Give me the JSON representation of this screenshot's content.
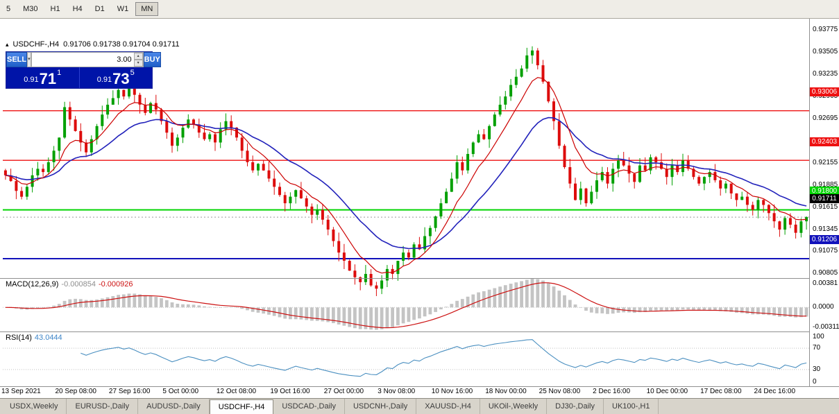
{
  "toolbar": {
    "buttons": [
      "5",
      "M30",
      "H1",
      "H4",
      "D1",
      "W1",
      "MN"
    ],
    "active_index": 6
  },
  "chart_header": {
    "symbol": "USDCHF-,H4",
    "ohlc": "0.91706 0.91738 0.91704 0.91711"
  },
  "icons": {
    "collapse": "▴",
    "dropdown": "▾",
    "spin_up": "▴",
    "spin_down": "▾"
  },
  "trade_panel": {
    "sell_label": "SELL",
    "buy_label": "BUY",
    "volume": "3.00",
    "sell": {
      "prefix": "0.91",
      "big": "71",
      "sup": "1"
    },
    "buy": {
      "prefix": "0.91",
      "big": "73",
      "sup": "5"
    }
  },
  "tabbar": {
    "items": [
      "USDX,Weekly",
      "EURUSD-,Daily",
      "AUDUSD-,Daily",
      "USDCHF-,H4",
      "USDCAD-,Daily",
      "USDCNH-,Daily",
      "XAUUSD-,H4",
      "UKOil-,Weekly",
      "DJ30-,Daily",
      "UK100-,H1"
    ],
    "active_index": 3
  },
  "chart_data": {
    "type": "candlestick",
    "symbol": "USDCHF-",
    "timeframe": "H4",
    "ohlc_header": {
      "open": 0.91706,
      "high": 0.91738,
      "low": 0.91704,
      "close": 0.91711
    },
    "ylim": [
      0.9075,
      0.9389
    ],
    "y_axis_ticks": [
      "0.93775",
      "0.93505",
      "0.93235",
      "0.92965",
      "0.92695",
      "0.92425",
      "0.92155",
      "0.91885",
      "0.91615",
      "0.91345",
      "0.91075",
      "0.90805"
    ],
    "x_labels": [
      "13 Sep 2021",
      "20 Sep 08:00",
      "27 Sep 16:00",
      "5 Oct 00:00",
      "12 Oct 08:00",
      "19 Oct 16:00",
      "27 Oct 00:00",
      "3 Nov 08:00",
      "10 Nov 16:00",
      "18 Nov 00:00",
      "25 Nov 08:00",
      "2 Dec 16:00",
      "10 Dec 00:00",
      "17 Dec 08:00",
      "24 Dec 16:00"
    ],
    "x_label_step": 10,
    "closes": [
      0.9222,
      0.9215,
      0.9203,
      0.9196,
      0.9208,
      0.9222,
      0.923,
      0.9226,
      0.9238,
      0.9252,
      0.9268,
      0.9305,
      0.929,
      0.9276,
      0.9262,
      0.925,
      0.9266,
      0.9282,
      0.9296,
      0.9308,
      0.9316,
      0.9326,
      0.9318,
      0.933,
      0.932,
      0.9308,
      0.9298,
      0.931,
      0.9302,
      0.9288,
      0.9274,
      0.9258,
      0.9268,
      0.928,
      0.929,
      0.9284,
      0.9274,
      0.9266,
      0.9272,
      0.9262,
      0.9278,
      0.9288,
      0.928,
      0.9268,
      0.9252,
      0.9238,
      0.9228,
      0.9236,
      0.9228,
      0.9218,
      0.9208,
      0.9198,
      0.9188,
      0.9196,
      0.9204,
      0.9194,
      0.9184,
      0.9174,
      0.918,
      0.9168,
      0.9156,
      0.9142,
      0.9128,
      0.9118,
      0.9106,
      0.9098,
      0.9092,
      0.9102,
      0.9088,
      0.9084,
      0.9094,
      0.9108,
      0.9102,
      0.9118,
      0.9128,
      0.9122,
      0.9138,
      0.9132,
      0.9148,
      0.9158,
      0.9172,
      0.9188,
      0.9202,
      0.9218,
      0.9238,
      0.9228,
      0.9248,
      0.9262,
      0.9272,
      0.9266,
      0.9282,
      0.9296,
      0.9308,
      0.9318,
      0.9332,
      0.9342,
      0.9352,
      0.9368,
      0.9374,
      0.9356,
      0.9336,
      0.9312,
      0.9288,
      0.9258,
      0.9232,
      0.9212,
      0.9192,
      0.9206,
      0.9188,
      0.9202,
      0.9216,
      0.9226,
      0.9212,
      0.923,
      0.924,
      0.9234,
      0.9224,
      0.9214,
      0.9234,
      0.9228,
      0.9244,
      0.9238,
      0.923,
      0.922,
      0.9234,
      0.9226,
      0.924,
      0.923,
      0.922,
      0.9212,
      0.922,
      0.9226,
      0.9216,
      0.9206,
      0.9212,
      0.92,
      0.9192,
      0.9196,
      0.9186,
      0.918,
      0.9192,
      0.9186,
      0.9176,
      0.9166,
      0.9156,
      0.917,
      0.9162,
      0.9152,
      0.9166,
      0.91711
    ],
    "colors": {
      "up": "#00a000",
      "down": "#dd0c0c",
      "ma_fast": "#cc0000",
      "ma_slow": "#2222bb",
      "macd_hist": "#c4c4c4",
      "macd_signal": "#cc1111",
      "rsi": "#4a8fc0"
    },
    "hlines": [
      {
        "price": 0.93006,
        "label": "0.93006",
        "color": "#ee1111",
        "width": 1.4
      },
      {
        "price": 0.92403,
        "label": "0.92403",
        "color": "#ee1111",
        "width": 1.4
      },
      {
        "price": 0.918,
        "label": "0.91800",
        "color": "#00d400",
        "width": 2
      },
      {
        "price": 0.91206,
        "label": "0.91206",
        "color": "#1111bb",
        "width": 2
      }
    ],
    "current_price": {
      "price": 0.91711,
      "label": "0.91711",
      "color": "#000000"
    },
    "indicators": {
      "macd": {
        "title": "MACD(12,26,9)",
        "value_main": "-0.000854",
        "value_signal": "-0.000926",
        "params": [
          12,
          26,
          9
        ],
        "ylim": [
          -0.00311,
          0.00381
        ],
        "axis_labels": [
          {
            "value": 0.00381,
            "label": "0.00381"
          },
          {
            "value": 0,
            "label": "0.0000"
          },
          {
            "value": -0.00311,
            "label": "-0.00311"
          }
        ]
      },
      "rsi": {
        "title": "RSI(14)",
        "period": 14,
        "value": "43.0444",
        "levels": [
          100,
          70,
          30,
          0
        ]
      }
    }
  }
}
